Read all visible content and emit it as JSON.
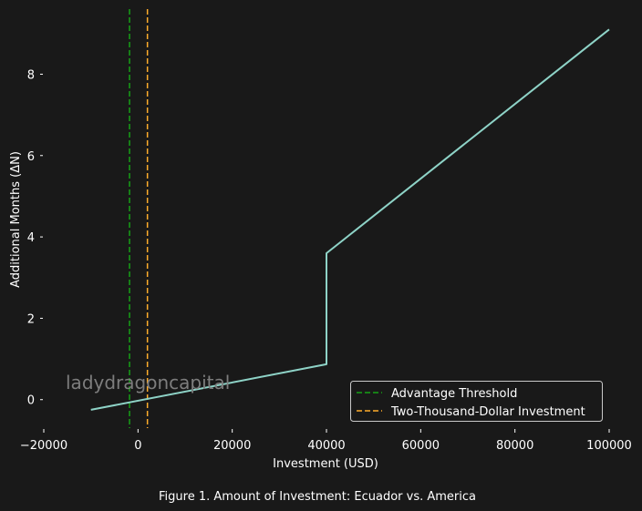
{
  "chart_data": {
    "type": "line",
    "title": "",
    "xlabel": "Investment (USD)",
    "ylabel": "Additional Months (ΔN)",
    "xlim": [
      -20000,
      100000
    ],
    "ylim": [
      -0.7,
      9.6
    ],
    "xticks": [
      -20000,
      0,
      20000,
      40000,
      60000,
      80000,
      100000
    ],
    "xtick_labels": [
      "−20000",
      "0",
      "20000",
      "40000",
      "60000",
      "80000",
      "100000"
    ],
    "yticks": [
      0,
      2,
      4,
      6,
      8
    ],
    "ytick_labels": [
      "0",
      "2",
      "4",
      "6",
      "8"
    ],
    "grid": false,
    "legend_position": "bottom-right",
    "series": [
      {
        "color": "#8ed3c7",
        "style": "solid",
        "x": [
          -10000,
          40000,
          40000,
          100000
        ],
        "y": [
          -0.25,
          0.87,
          3.6,
          9.1
        ]
      }
    ],
    "vlines": [
      {
        "name": "Advantage Threshold",
        "x": -1800,
        "color": "#16a116",
        "style": "dashed"
      },
      {
        "name": "Two-Thousand-Dollar Investment",
        "x": 2000,
        "color": "#ffad2b",
        "style": "dashed"
      }
    ],
    "watermark": "ladydragoncapital",
    "caption": "Figure 1. Amount of Investment: Ecuador vs. America"
  }
}
